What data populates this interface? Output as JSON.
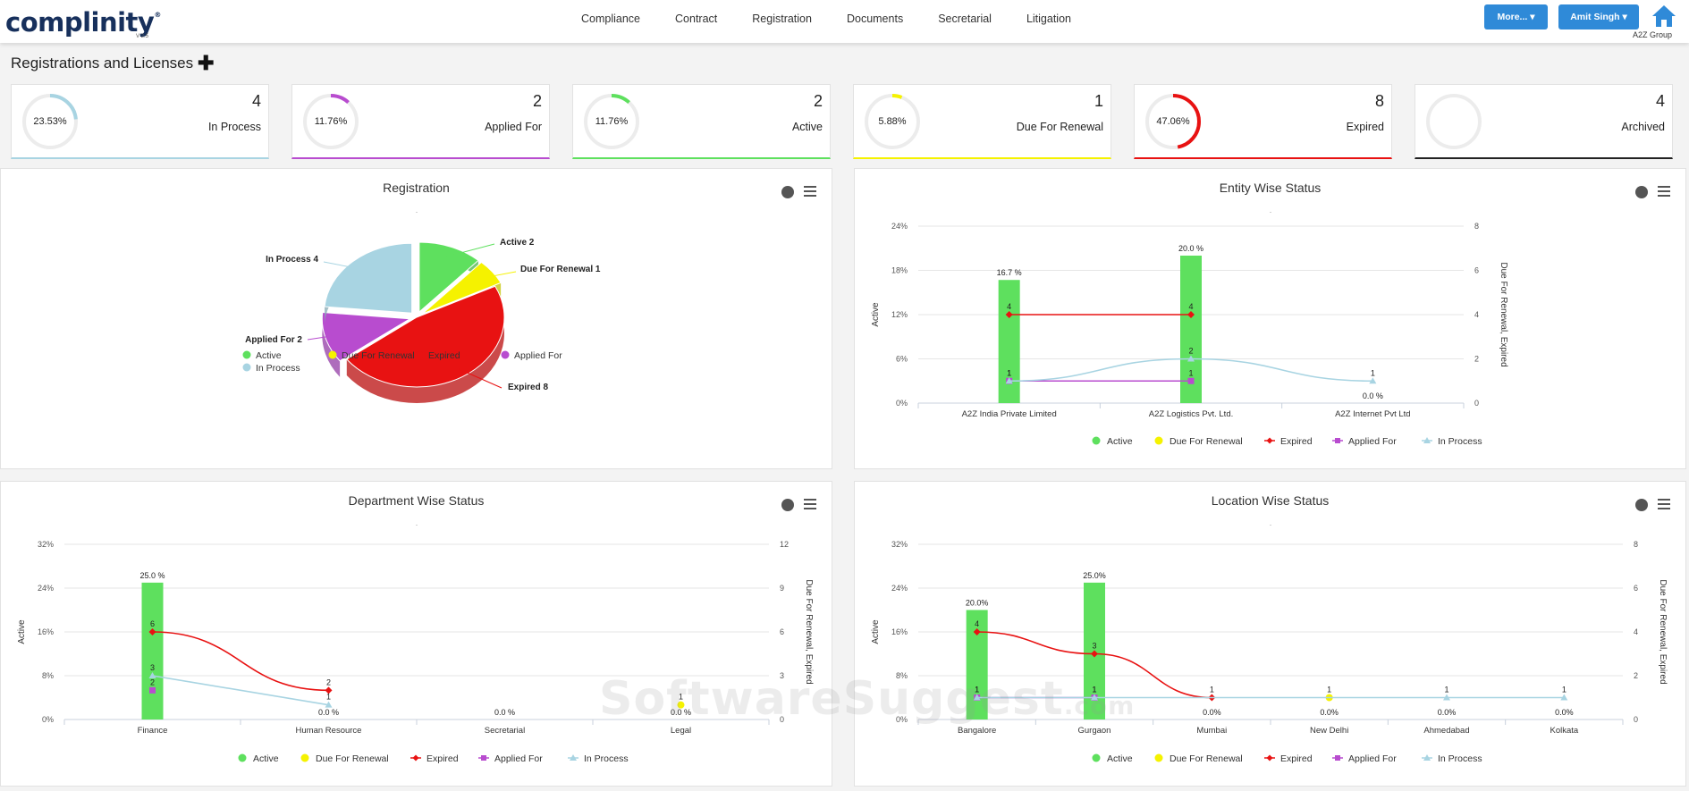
{
  "app": {
    "logo": "complinity",
    "logo_mark": "®",
    "version": "V 2.5"
  },
  "nav": [
    "Compliance",
    "Contract",
    "Registration",
    "Documents",
    "Secretarial",
    "Litigation"
  ],
  "header": {
    "more_label": "More...",
    "user_label": "Amit Singh",
    "org": "A2Z Group"
  },
  "page": {
    "title": "Registrations and Licenses"
  },
  "stats": [
    {
      "pct": "23.53%",
      "count": "4",
      "label": "In Process",
      "color": "#a8d4e2",
      "fraction": 0.2353
    },
    {
      "pct": "11.76%",
      "count": "2",
      "label": "Applied For",
      "color": "#b84ccf",
      "fraction": 0.1176
    },
    {
      "pct": "11.76%",
      "count": "2",
      "label": "Active",
      "color": "#5ee05e",
      "fraction": 0.1176
    },
    {
      "pct": "5.88%",
      "count": "1",
      "label": "Due For Renewal",
      "color": "#f5f200",
      "fraction": 0.0588
    },
    {
      "pct": "47.06%",
      "count": "8",
      "label": "Expired",
      "color": "#e81212",
      "fraction": 0.4706
    },
    {
      "pct": "",
      "count": "4",
      "label": "Archived",
      "color": "#222222",
      "fraction": 0
    }
  ],
  "legend_labels": [
    "Active",
    "Due For Renewal",
    "Expired",
    "Applied For",
    "In Process"
  ],
  "colors": {
    "Active": "#5ee05e",
    "Due For Renewal": "#f5f200",
    "Expired": "#e81212",
    "Applied For": "#b84ccf",
    "In Process": "#a8d4e2"
  },
  "chart_data": [
    {
      "type": "pie",
      "title": "Registration",
      "subtitle": ".",
      "slices": [
        {
          "name": "Active",
          "value": 2,
          "label": "Active 2"
        },
        {
          "name": "Due For Renewal",
          "value": 1,
          "label": "Due For Renewal 1"
        },
        {
          "name": "Expired",
          "value": 8,
          "label": "Expired 8"
        },
        {
          "name": "Applied For",
          "value": 2,
          "label": "Applied For 2"
        },
        {
          "name": "In Process",
          "value": 4,
          "label": "In Process 4"
        }
      ]
    },
    {
      "type": "bar",
      "title": "Entity Wise Status",
      "subtitle": ".",
      "categories": [
        "A2Z India Private Limited",
        "A2Z Logistics Pvt. Ltd.",
        "A2Z Internet Pvt Ltd"
      ],
      "ylabel": "Active",
      "y2label": "Due For Renewal, Expired",
      "yticks": [
        "0%",
        "6%",
        "12%",
        "18%",
        "24%"
      ],
      "y2ticks": [
        "0",
        "2",
        "4",
        "6",
        "8"
      ],
      "ylim": [
        0,
        24
      ],
      "y2lim": [
        0,
        8
      ],
      "bar_labels": [
        "16.7 %",
        "20.0 %",
        "0.0 %"
      ],
      "series": [
        {
          "name": "Active",
          "kind": "bar",
          "values": [
            16.7,
            20.0,
            0.0
          ]
        },
        {
          "name": "Expired",
          "kind": "line",
          "values": [
            4,
            4,
            null
          ]
        },
        {
          "name": "Applied For",
          "kind": "line",
          "values": [
            1,
            1,
            null
          ]
        },
        {
          "name": "In Process",
          "kind": "spline",
          "values": [
            1,
            2,
            1
          ]
        }
      ]
    },
    {
      "type": "bar",
      "title": "Department Wise Status",
      "subtitle": ".",
      "categories": [
        "Finance",
        "Human Resource",
        "Secretarial",
        "Legal"
      ],
      "ylabel": "Active",
      "y2label": "Due For Renewal, Expired",
      "yticks": [
        "0%",
        "8%",
        "16%",
        "24%",
        "32%"
      ],
      "y2ticks": [
        "0",
        "3",
        "6",
        "9",
        "12"
      ],
      "ylim": [
        0,
        32
      ],
      "y2lim": [
        0,
        12
      ],
      "bar_labels": [
        "25.0 %",
        "0.0 %",
        "0.0 %",
        "0.0 %"
      ],
      "series": [
        {
          "name": "Active",
          "kind": "bar",
          "values": [
            25.0,
            0.0,
            0.0,
            0.0
          ]
        },
        {
          "name": "Due For Renewal",
          "kind": "point",
          "values": [
            null,
            null,
            null,
            1
          ]
        },
        {
          "name": "Expired",
          "kind": "spline",
          "values": [
            6,
            2,
            null,
            null
          ]
        },
        {
          "name": "Applied For",
          "kind": "point",
          "values": [
            2,
            null,
            null,
            null
          ]
        },
        {
          "name": "In Process",
          "kind": "line",
          "values": [
            3,
            1,
            null,
            null
          ]
        }
      ]
    },
    {
      "type": "bar",
      "title": "Location Wise Status",
      "subtitle": ".",
      "categories": [
        "Bangalore",
        "Gurgaon",
        "Mumbai",
        "New Delhi",
        "Ahmedabad",
        "Kolkata"
      ],
      "ylabel": "Active",
      "y2label": "Due For Renewal, Expired",
      "yticks": [
        "0%",
        "8%",
        "16%",
        "24%",
        "32%"
      ],
      "y2ticks": [
        "0",
        "2",
        "4",
        "6",
        "8"
      ],
      "ylim": [
        0,
        32
      ],
      "y2lim": [
        0,
        8
      ],
      "bar_labels": [
        "20.0%",
        "25.0%",
        "0.0%",
        "0.0%",
        "0.0%",
        "0.0%"
      ],
      "series": [
        {
          "name": "Active",
          "kind": "bar",
          "values": [
            20.0,
            25.0,
            0.0,
            0.0,
            0.0,
            0.0
          ]
        },
        {
          "name": "Due For Renewal",
          "kind": "point",
          "values": [
            null,
            null,
            null,
            1,
            null,
            null
          ]
        },
        {
          "name": "Expired",
          "kind": "spline",
          "values": [
            4,
            3,
            1,
            null,
            null,
            null
          ]
        },
        {
          "name": "Applied For",
          "kind": "line",
          "values": [
            1,
            1,
            null,
            null,
            null,
            null
          ]
        },
        {
          "name": "In Process",
          "kind": "line",
          "values": [
            1,
            1,
            null,
            null,
            1,
            1
          ]
        }
      ]
    }
  ],
  "watermark": {
    "main": "SoftwareSuggest",
    "suffix": ".com"
  }
}
